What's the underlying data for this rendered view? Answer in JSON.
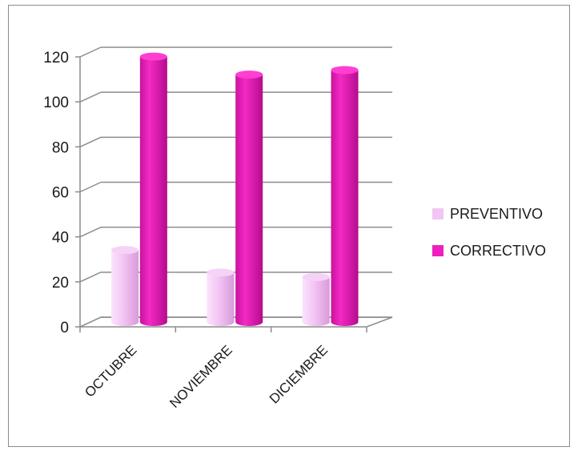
{
  "chart_data": {
    "type": "bar",
    "style": "3d-cylinder",
    "categories": [
      "OCTUBRE",
      "NOVIEMBRE",
      "DICIEMBRE"
    ],
    "series": [
      {
        "name": "PREVENTIVO",
        "values": [
          32,
          22,
          20
        ],
        "color": "#f1c6f3"
      },
      {
        "name": "CORRECTIVO",
        "values": [
          118,
          110,
          112
        ],
        "color": "#ee1fbf"
      }
    ],
    "ylim": [
      0,
      120
    ],
    "yticks": [
      0,
      20,
      40,
      60,
      80,
      100,
      120
    ],
    "grid": true,
    "legend_position": "right",
    "title": "",
    "xlabel": "",
    "ylabel": ""
  }
}
